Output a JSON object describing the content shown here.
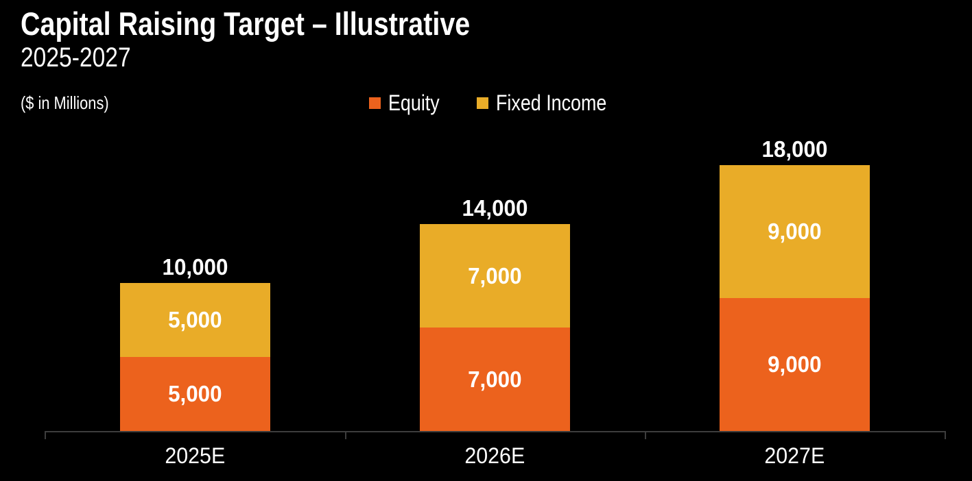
{
  "header": {
    "title": "Capital Raising Target – Illustrative",
    "subtitle": "2025-2027",
    "units_note": "($ in Millions)"
  },
  "legend": {
    "items": [
      {
        "label": "Equity",
        "color": "#EC621D"
      },
      {
        "label": "Fixed Income",
        "color": "#E9AC28"
      }
    ]
  },
  "colors": {
    "background": "#000000",
    "text": "#FFFFFF",
    "axis": "#3D3D3D",
    "equity": "#EC621D",
    "fixed_income": "#E9AC28"
  },
  "chart_data": {
    "type": "bar",
    "stacked": true,
    "title": "Capital Raising Target – Illustrative",
    "subtitle": "2025-2027",
    "units": "($ in Millions)",
    "categories": [
      "2025E",
      "2026E",
      "2027E"
    ],
    "series": [
      {
        "name": "Equity",
        "color": "#EC621D",
        "values": [
          5000,
          7000,
          9000
        ]
      },
      {
        "name": "Fixed Income",
        "color": "#E9AC28",
        "values": [
          5000,
          7000,
          9000
        ]
      }
    ],
    "totals": [
      10000,
      14000,
      18000
    ],
    "value_label_format": "#,##0",
    "legend_position": "top-center",
    "grid": false,
    "axis_labels_visible": false,
    "ylim": [
      0,
      18000
    ]
  }
}
